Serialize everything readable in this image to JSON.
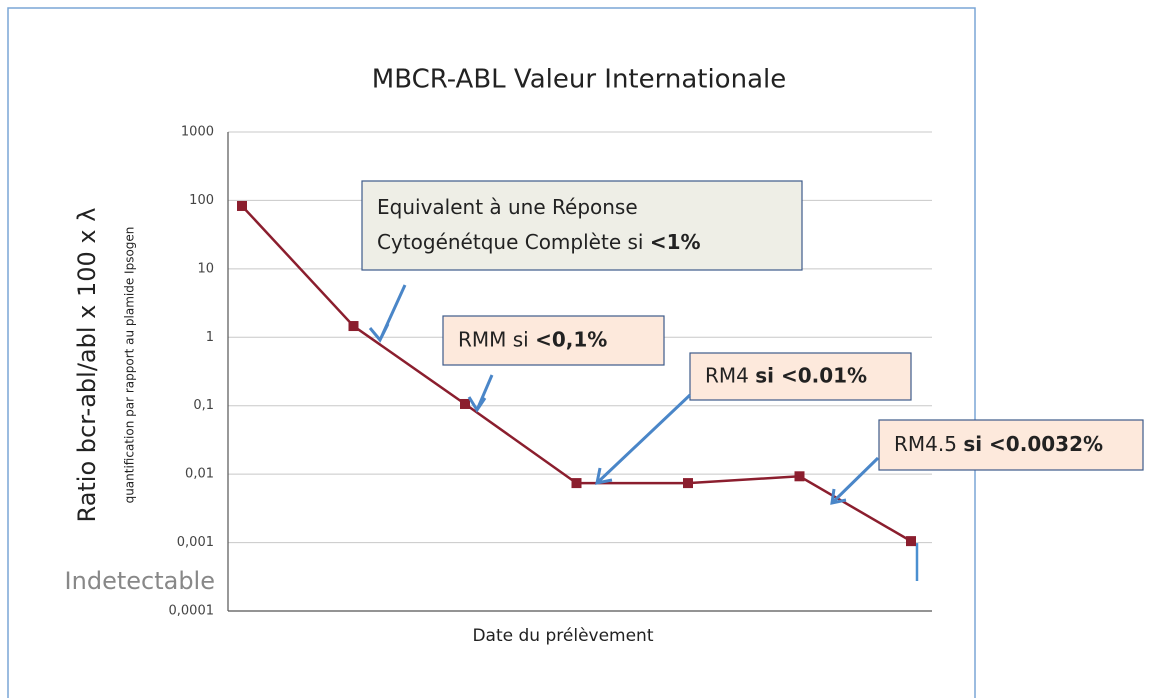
{
  "chart_data": {
    "type": "line",
    "title": "MBCR-ABL Valeur Internationale",
    "y_label": "Ratio bcr-abl/abl x 100 x λ",
    "y_sublabel": "quantification par rapport au plamide Ipsogen",
    "x_label": "Date du prélèvement",
    "floor_label": "Indetectable",
    "log_y": true,
    "grid": true,
    "color": "#8b1e2e",
    "categories": [
      null,
      null,
      null,
      null,
      null,
      null,
      null
    ],
    "values": [
      83,
      1.46,
      0.106,
      0.0074,
      0.0074,
      0.0093,
      0.00105
    ],
    "ylim": [
      0.0001,
      1000
    ],
    "yticks": [
      1000,
      100,
      10,
      1,
      {
        "value": 0.1,
        "label": "0,1"
      },
      {
        "value": 0.01,
        "label": "0,01"
      },
      {
        "value": 0.001,
        "label": "0,001"
      },
      {
        "value": 0.0001,
        "label": "0,0001"
      }
    ],
    "annotations": [
      {
        "lines": [
          [
            "Equivalent à une Réponse"
          ],
          [
            "Cytogénétque Complète si ",
            "<1%"
          ]
        ]
      },
      {
        "lines": [
          [
            "RMM si ",
            "<0,1%"
          ]
        ]
      },
      {
        "lines": [
          [
            "RM4 ",
            "si <0.01%"
          ]
        ]
      },
      {
        "lines": [
          [
            "RM4.5 ",
            "si <0.0032%"
          ]
        ]
      }
    ]
  }
}
